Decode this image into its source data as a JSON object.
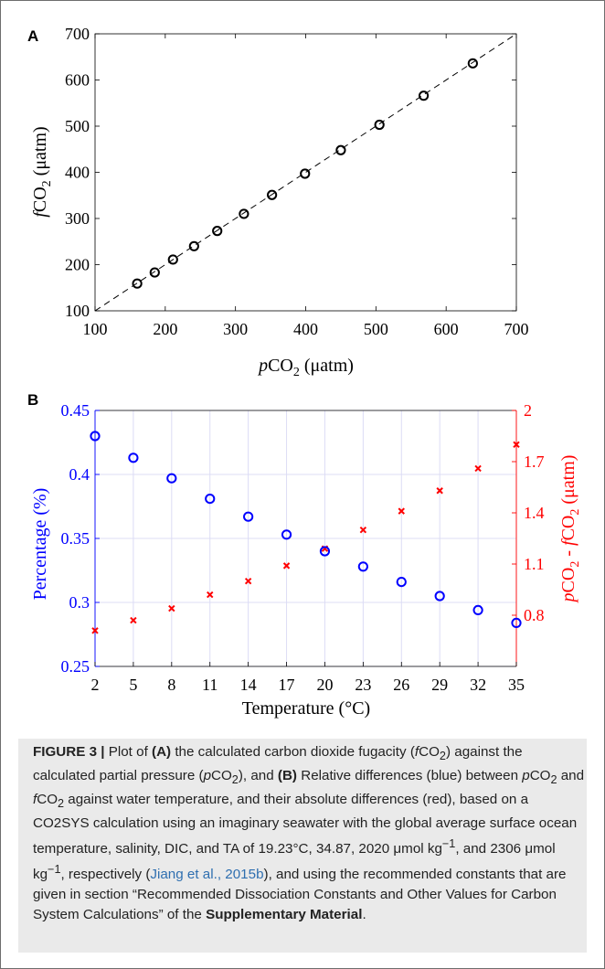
{
  "colors": {
    "blue": "#0000ff",
    "red": "#ff0000",
    "black": "#000000",
    "grid": "#dcdcf5",
    "link": "#2f6fb0",
    "caption_bg": "#eaeaea"
  },
  "chart_data": [
    {
      "panel": "A",
      "type": "scatter",
      "xlabel_prefix": "p",
      "xlabel_main": "CO",
      "xlabel_sub": "2",
      "xlabel_suffix": " (μatm)",
      "ylabel_prefix": "f",
      "ylabel_main": "CO",
      "ylabel_sub": "2",
      "ylabel_suffix": " (μatm)",
      "xlim": [
        100,
        700
      ],
      "ylim": [
        100,
        700
      ],
      "xticks": [
        100,
        200,
        300,
        400,
        500,
        600,
        700
      ],
      "yticks": [
        100,
        200,
        300,
        400,
        500,
        600,
        700
      ],
      "grid": false,
      "reference_line": "1:1 dashed",
      "marker": "open circle",
      "series": [
        {
          "x": [
            160,
            185,
            211,
            241,
            274,
            312,
            352,
            399,
            450,
            505,
            568,
            638
          ],
          "y": [
            159,
            183,
            211,
            240,
            273,
            310,
            351,
            397,
            448,
            503,
            566,
            636
          ]
        }
      ]
    },
    {
      "panel": "B",
      "type": "scatter",
      "xlabel": "Temperature (°C)",
      "ylabel_left": "Percentage (%)",
      "ylabel_right_prefix": "p",
      "ylabel_right_main": "CO",
      "ylabel_right_sub": "2",
      "ylabel_right_mid": " - ",
      "ylabel_right_prefix2": "f",
      "ylabel_right_main2": "CO",
      "ylabel_right_sub2": "2",
      "ylabel_right_suffix": " (μatm)",
      "x": [
        2,
        5,
        8,
        11,
        14,
        17,
        20,
        23,
        26,
        29,
        32,
        35
      ],
      "xlim": [
        2,
        35
      ],
      "ylim_left": [
        0.25,
        0.45
      ],
      "yticks_left": [
        "0.25",
        "0.3",
        "0.35",
        "0.4",
        "0.45"
      ],
      "ylim_right": [
        0.5,
        2.0
      ],
      "yticks_right": [
        "0.8",
        "1.1",
        "1.4",
        "1.7",
        "2"
      ],
      "grid": true,
      "series": [
        {
          "axis": "left",
          "marker": "open circle",
          "color": "#0000ff",
          "values": [
            0.43,
            0.413,
            0.397,
            0.381,
            0.367,
            0.353,
            0.34,
            0.328,
            0.316,
            0.305,
            0.294,
            0.284
          ]
        },
        {
          "axis": "right",
          "marker": "x",
          "color": "#ff0000",
          "values": [
            0.71,
            0.77,
            0.84,
            0.92,
            1.0,
            1.09,
            1.19,
            1.3,
            1.41,
            1.53,
            1.66,
            1.8
          ]
        }
      ]
    }
  ],
  "caption": {
    "label": "FIGURE 3 |",
    "t1": " Plot of ",
    "a": "(A)",
    "t2": " the calculated carbon dioxide fugacity (",
    "f1": "f",
    "co": "CO",
    "sub": "2",
    "t3": ") against the calculated partial pressure (",
    "p1": "p",
    "t4": "), and ",
    "b": "(B)",
    "t5": " Relative differences (blue) between ",
    "t6": " and ",
    "t7": " against water temperature, and their absolute differences (red), based on a CO2SYS calculation using an imaginary seawater with the global average surface ocean temperature, salinity, DIC, and TA of 19.23°C, 34.87, 2020 μmol kg",
    "exp": "−1",
    "t8": ", and 2306 μmol kg",
    "t9": ", respectively (",
    "ref": "Jiang et al., 2015b",
    "t10": "), and using the recommended constants that are given in section “Recommended Dissociation Constants and Other Values for Carbon System Calculations” of the ",
    "supp": "Supplementary Material",
    "t11": "."
  }
}
